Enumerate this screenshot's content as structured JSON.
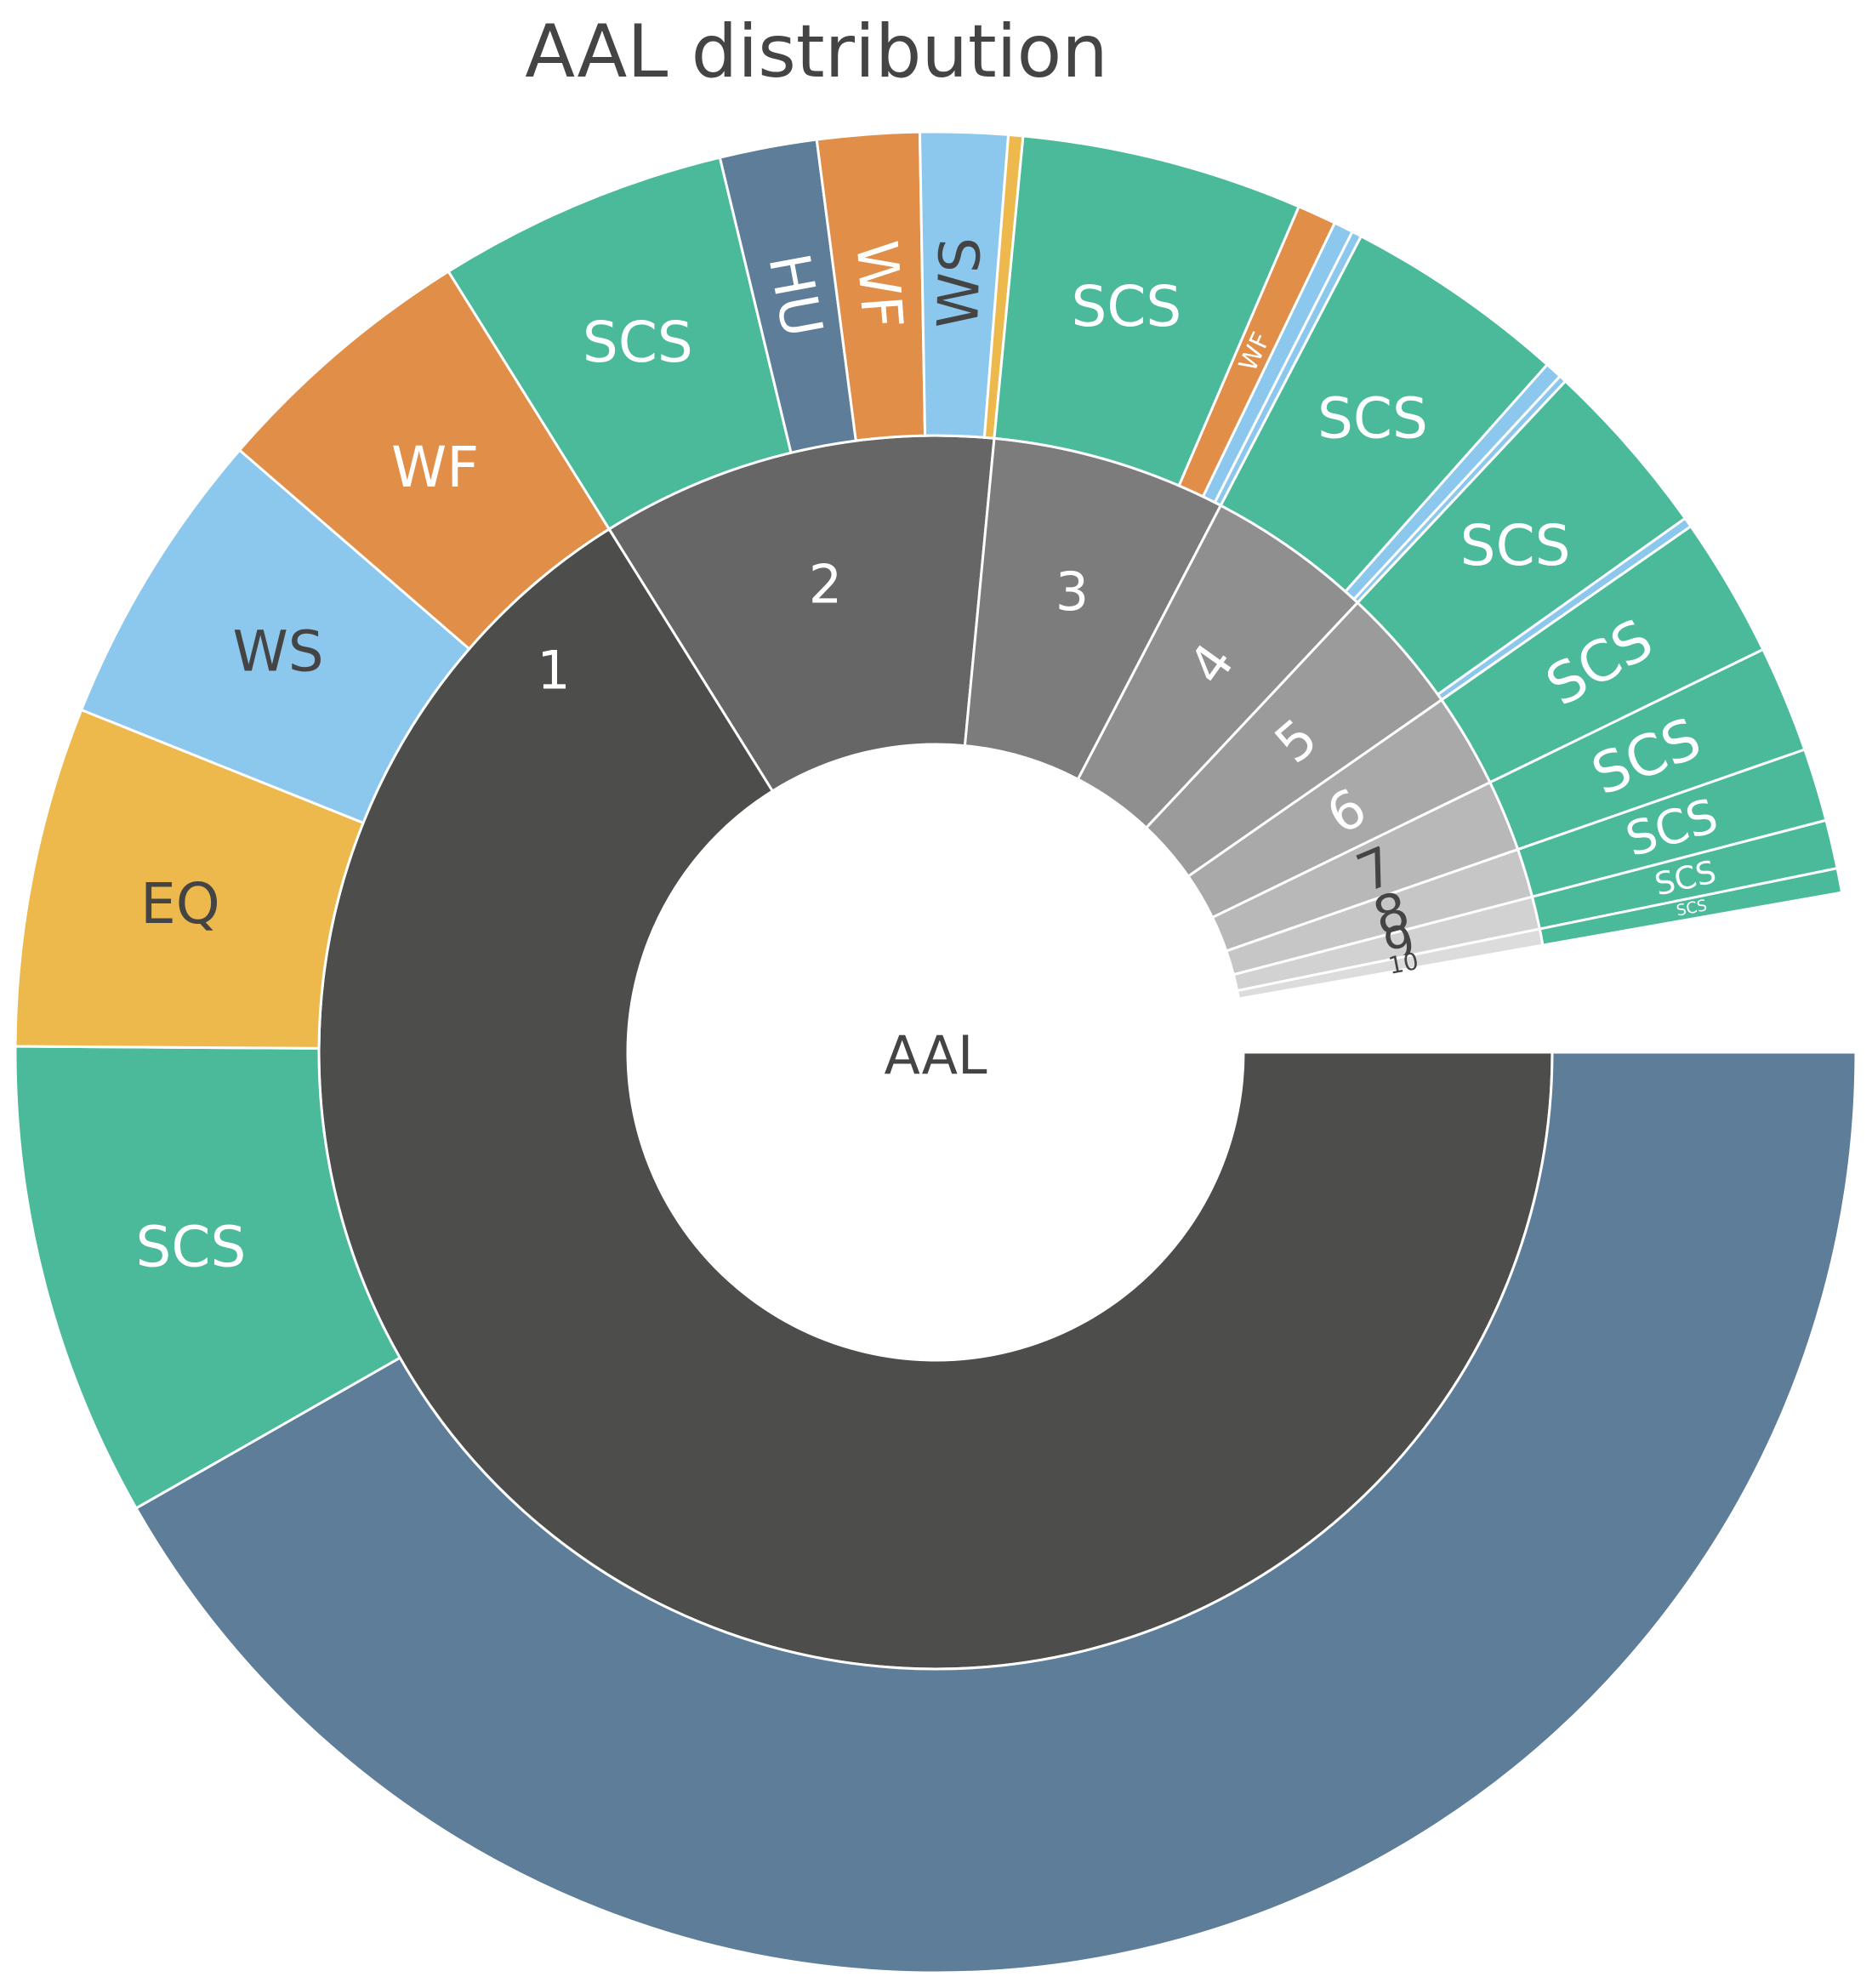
{
  "chart_data": {
    "type": "sunburst",
    "title": "AAL distribution",
    "root_label": "AAL",
    "colors": {
      "HU": "#5e7d99",
      "SCS": "#4aba9b",
      "EQ": "#edb94d",
      "WS": "#8cc8ee",
      "WF": "#e08e48",
      "level1": [
        "#4d4d4b",
        "#666666",
        "#7c7c7c",
        "#8f8f8f",
        "#9b9b9b",
        "#a9a9a9",
        "#b8b8b8",
        "#c6c6c6",
        "#d2d2d2",
        "#dcdcdc"
      ]
    },
    "groups": [
      {
        "label": "1",
        "children": [
          {
            "label": "HU",
            "value": 49.0
          },
          {
            "label": "SCS",
            "value": 9.8
          },
          {
            "label": "EQ",
            "value": 7.0
          },
          {
            "label": "WS",
            "value": 6.2
          },
          {
            "label": "WF",
            "value": 5.6
          }
        ]
      },
      {
        "label": "2",
        "children": [
          {
            "label": "SCS",
            "value": 6.0
          },
          {
            "label": "HU",
            "value": 2.0
          },
          {
            "label": "WF",
            "value": 2.1
          },
          {
            "label": "WS",
            "value": 1.8
          },
          {
            "label": "",
            "value": 0.3
          }
        ]
      },
      {
        "label": "3",
        "children": [
          {
            "label": "SCS",
            "value": 5.8
          },
          {
            "label": "WF",
            "value": 0.8
          },
          {
            "label": "",
            "value": 0.4
          },
          {
            "label": "",
            "value": 0.2
          }
        ]
      },
      {
        "label": "4",
        "children": [
          {
            "label": "SCS",
            "value": 4.6
          },
          {
            "label": "",
            "value": 0.35
          },
          {
            "label": "",
            "value": 0.15
          }
        ]
      },
      {
        "label": "5",
        "children": [
          {
            "label": "SCS",
            "value": 3.7
          },
          {
            "label": "",
            "value": 0.2
          }
        ]
      },
      {
        "label": "6",
        "children": [
          {
            "label": "SCS",
            "value": 2.9
          }
        ]
      },
      {
        "label": "7",
        "children": [
          {
            "label": "SCS",
            "value": 2.2
          }
        ]
      },
      {
        "label": "8",
        "children": [
          {
            "label": "SCS",
            "value": 1.5
          }
        ]
      },
      {
        "label": "9",
        "children": [
          {
            "label": "SCS",
            "value": 1.0
          }
        ]
      },
      {
        "label": "10",
        "children": [
          {
            "label": "SCS",
            "value": 0.5
          }
        ]
      }
    ]
  }
}
